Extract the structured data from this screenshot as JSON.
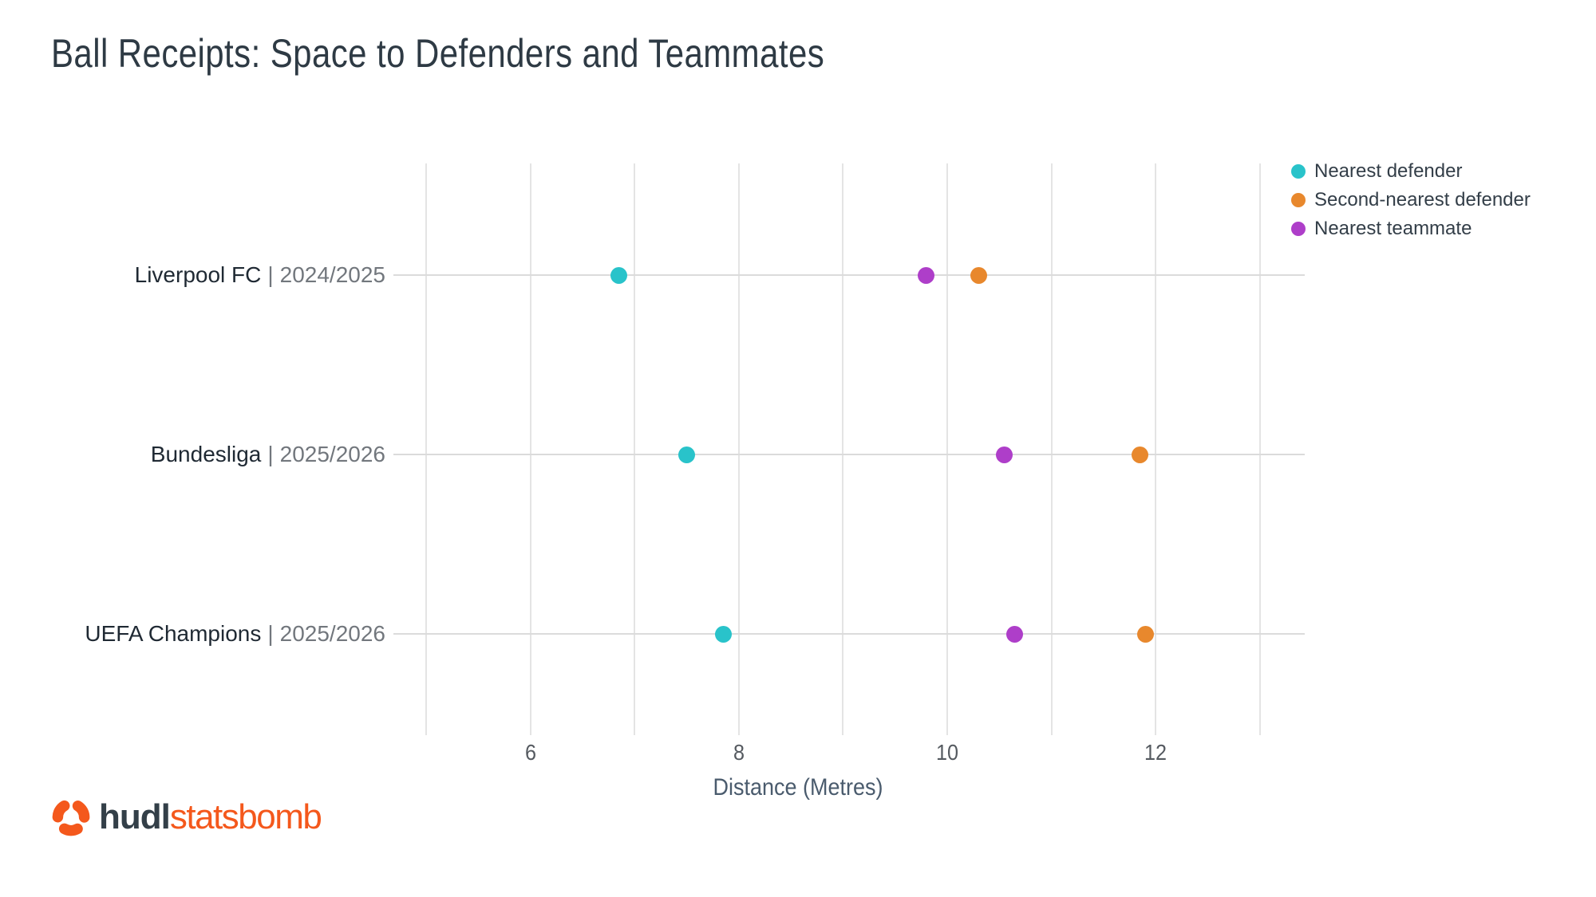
{
  "title": "Ball Receipts: Space to Defenders and Teammates",
  "chart_data": {
    "type": "scatter",
    "variant": "horizontal-dot-plot",
    "categories": [
      "Liverpool FC | 2024/2025",
      "Bundesliga | 2025/2026",
      "UEFA Champions | 2025/2026"
    ],
    "category_names": [
      "Liverpool FC",
      "Bundesliga",
      "UEFA Champions"
    ],
    "category_seasons": [
      "2024/2025",
      "2025/2026",
      "2025/2026"
    ],
    "label_divider": "|",
    "series": [
      {
        "name": "Nearest defender",
        "color": "#29C3CA",
        "values": [
          6.85,
          7.5,
          7.85
        ]
      },
      {
        "name": "Second-nearest defender",
        "color": "#E8882D",
        "values": [
          10.3,
          11.85,
          11.9
        ]
      },
      {
        "name": "Nearest teammate",
        "color": "#AE3EC9",
        "values": [
          9.8,
          10.55,
          10.65
        ]
      }
    ],
    "xlabel": "Distance (Metres)",
    "xlim": [
      5,
      13
    ],
    "xticks": [
      6,
      8,
      10,
      12
    ],
    "grid": "vertical gridlines every 1 metre, horizontal guide line per category",
    "legend_position": "top-right"
  },
  "branding": {
    "hudl": "hudl",
    "statsbomb": "statsbomb",
    "logo_orange": "#F4581C",
    "logo_dark": "#333F48"
  }
}
